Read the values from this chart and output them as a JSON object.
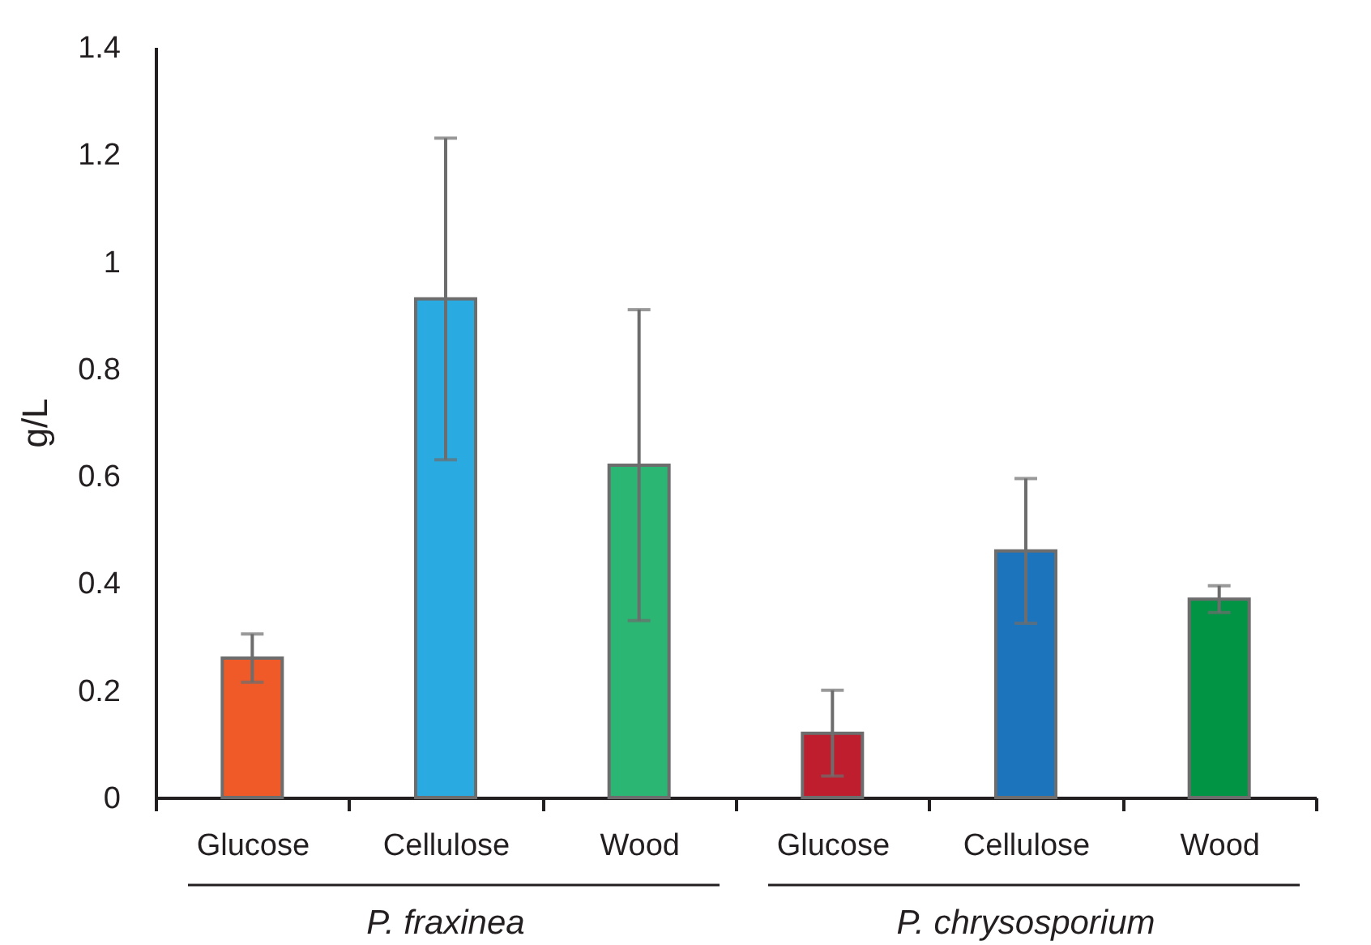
{
  "chart_data": {
    "type": "bar",
    "categories": [
      "Glucose",
      "Cellulose",
      "Wood",
      "Glucose",
      "Cellulose",
      "Wood"
    ],
    "values": [
      0.26,
      0.93,
      0.62,
      0.12,
      0.46,
      0.37
    ],
    "errors": [
      0.045,
      0.3,
      0.29,
      0.08,
      0.135,
      0.025
    ],
    "colors": [
      "#ef5a28",
      "#29abe2",
      "#2bb673",
      "#be1e2d",
      "#1c75bc",
      "#009444"
    ],
    "ylabel": "g/L",
    "ylim": [
      0,
      1.4
    ],
    "yticks": [
      0,
      0.2,
      0.4,
      0.6,
      0.8,
      1,
      1.2,
      1.4
    ],
    "annotations": [
      "P. fraxinea",
      "P. chrysosporium"
    ],
    "grid": false,
    "legend": false
  }
}
